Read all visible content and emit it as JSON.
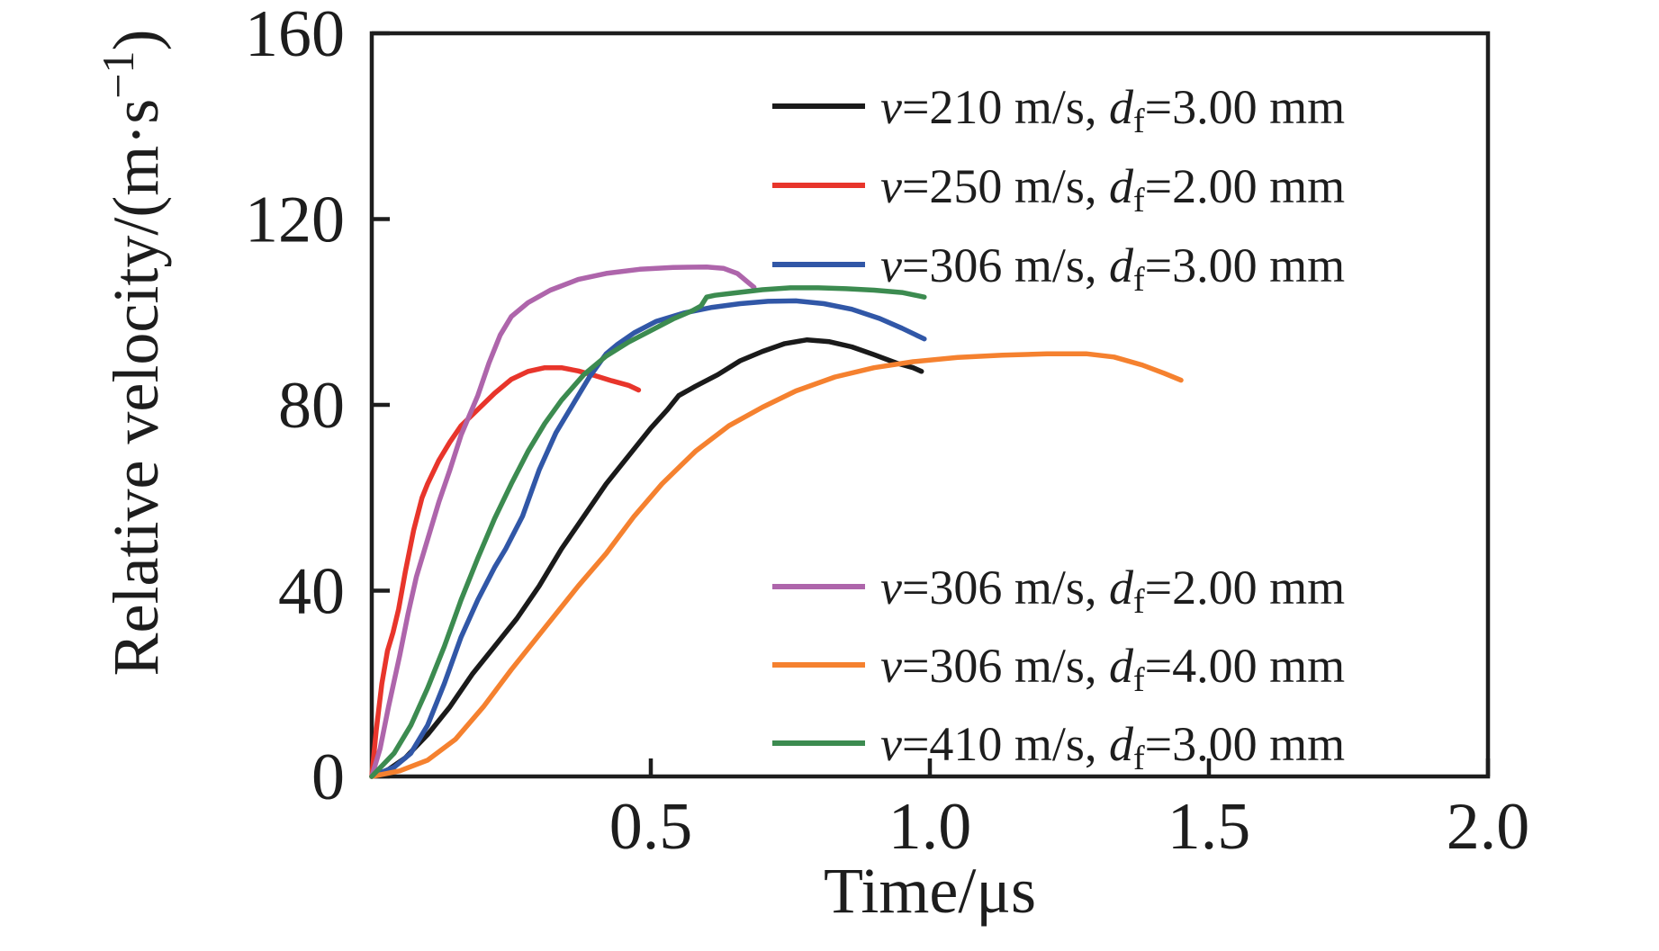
{
  "chart_data": {
    "type": "line",
    "title": "",
    "xlabel": "Time/μs",
    "xlabel_parts": [
      {
        "t": "Time/μs"
      }
    ],
    "ylabel": "Relative velocity/(m·s−1)",
    "ylabel_parts": [
      {
        "t": "Relative velocity/(m·s"
      },
      {
        "t": "−1",
        "style": "sup"
      },
      {
        "t": ")"
      }
    ],
    "xlim": [
      0,
      2.0
    ],
    "ylim": [
      0,
      160
    ],
    "x_ticks": [
      {
        "value": 0.5,
        "label": "0.5"
      },
      {
        "value": 1.0,
        "label": "1.0"
      },
      {
        "value": 1.5,
        "label": "1.5"
      },
      {
        "value": 2.0,
        "label": "2.0"
      }
    ],
    "y_ticks": [
      {
        "value": 0,
        "label": "0"
      },
      {
        "value": 40,
        "label": "40"
      },
      {
        "value": 80,
        "label": "80"
      },
      {
        "value": 120,
        "label": "120"
      },
      {
        "value": 160,
        "label": "160"
      }
    ],
    "grid": false,
    "frame": "full-box",
    "axis_color": "#1d1d1d",
    "background": "#ffffff",
    "legend_position": "two blocks inside plot: upper-right and lower-right",
    "series": [
      {
        "name": "v=210 m/s, df=3.00 mm",
        "label_parts": [
          {
            "t": "v",
            "style": "i"
          },
          {
            "t": "=210 m/s, "
          },
          {
            "t": "d",
            "style": "i"
          },
          {
            "t": "f",
            "style": "sub"
          },
          {
            "t": "=3.00 mm"
          }
        ],
        "color": "#1a1a1a",
        "legend_block": 0,
        "points": [
          [
            0,
            0
          ],
          [
            0.03,
            1.5
          ],
          [
            0.06,
            4
          ],
          [
            0.1,
            9
          ],
          [
            0.14,
            15
          ],
          [
            0.18,
            22
          ],
          [
            0.22,
            28
          ],
          [
            0.26,
            34
          ],
          [
            0.3,
            41
          ],
          [
            0.34,
            49
          ],
          [
            0.38,
            56
          ],
          [
            0.42,
            63
          ],
          [
            0.46,
            69
          ],
          [
            0.5,
            75
          ],
          [
            0.53,
            79
          ],
          [
            0.55,
            82
          ],
          [
            0.58,
            84
          ],
          [
            0.62,
            86.5
          ],
          [
            0.66,
            89.5
          ],
          [
            0.7,
            91.5
          ],
          [
            0.74,
            93.2
          ],
          [
            0.78,
            94
          ],
          [
            0.82,
            93.6
          ],
          [
            0.86,
            92.5
          ],
          [
            0.9,
            90.8
          ],
          [
            0.94,
            89
          ],
          [
            0.97,
            88
          ],
          [
            0.985,
            87.2
          ]
        ]
      },
      {
        "name": "v=250 m/s, df=2.00 mm",
        "label_parts": [
          {
            "t": "v",
            "style": "i"
          },
          {
            "t": "=250 m/s, "
          },
          {
            "t": "d",
            "style": "i"
          },
          {
            "t": "f",
            "style": "sub"
          },
          {
            "t": "=2.00 mm"
          }
        ],
        "color": "#e8352b",
        "legend_block": 0,
        "points": [
          [
            0,
            0
          ],
          [
            0.008,
            10
          ],
          [
            0.018,
            20
          ],
          [
            0.028,
            27
          ],
          [
            0.038,
            31
          ],
          [
            0.048,
            36
          ],
          [
            0.06,
            44
          ],
          [
            0.075,
            53
          ],
          [
            0.09,
            60
          ],
          [
            0.1,
            63
          ],
          [
            0.12,
            68
          ],
          [
            0.14,
            72
          ],
          [
            0.16,
            75.5
          ],
          [
            0.19,
            79
          ],
          [
            0.22,
            82.5
          ],
          [
            0.25,
            85.5
          ],
          [
            0.28,
            87.2
          ],
          [
            0.31,
            88
          ],
          [
            0.34,
            88
          ],
          [
            0.37,
            87.3
          ],
          [
            0.4,
            86.3
          ],
          [
            0.43,
            85.2
          ],
          [
            0.46,
            84.2
          ],
          [
            0.478,
            83.2
          ]
        ]
      },
      {
        "name": "v=306 m/s, df=3.00 mm",
        "label_parts": [
          {
            "t": "v",
            "style": "i"
          },
          {
            "t": "=306 m/s, "
          },
          {
            "t": "d",
            "style": "i"
          },
          {
            "t": "f",
            "style": "sub"
          },
          {
            "t": "=3.00 mm"
          }
        ],
        "color": "#3157a7",
        "legend_block": 0,
        "points": [
          [
            0,
            0
          ],
          [
            0.04,
            2
          ],
          [
            0.07,
            5
          ],
          [
            0.1,
            11
          ],
          [
            0.13,
            20
          ],
          [
            0.16,
            30
          ],
          [
            0.19,
            38
          ],
          [
            0.22,
            45
          ],
          [
            0.24,
            49
          ],
          [
            0.27,
            56
          ],
          [
            0.3,
            66
          ],
          [
            0.33,
            74
          ],
          [
            0.36,
            80
          ],
          [
            0.39,
            86
          ],
          [
            0.42,
            91
          ],
          [
            0.44,
            93
          ],
          [
            0.47,
            95.5
          ],
          [
            0.51,
            98
          ],
          [
            0.56,
            99.8
          ],
          [
            0.61,
            101
          ],
          [
            0.66,
            101.8
          ],
          [
            0.71,
            102.3
          ],
          [
            0.76,
            102.4
          ],
          [
            0.81,
            101.8
          ],
          [
            0.86,
            100.6
          ],
          [
            0.91,
            98.6
          ],
          [
            0.95,
            96.5
          ],
          [
            0.99,
            94.2
          ]
        ]
      },
      {
        "name": "v=306 m/s, df=2.00 mm",
        "label_parts": [
          {
            "t": "v",
            "style": "i"
          },
          {
            "t": "=306 m/s, "
          },
          {
            "t": "d",
            "style": "i"
          },
          {
            "t": "f",
            "style": "sub"
          },
          {
            "t": "=2.00 mm"
          }
        ],
        "color": "#ae65ab",
        "legend_block": 1,
        "points": [
          [
            0,
            0
          ],
          [
            0.015,
            6
          ],
          [
            0.03,
            15
          ],
          [
            0.05,
            26
          ],
          [
            0.065,
            35
          ],
          [
            0.08,
            43
          ],
          [
            0.1,
            51
          ],
          [
            0.12,
            59
          ],
          [
            0.14,
            66
          ],
          [
            0.16,
            73.5
          ],
          [
            0.19,
            82
          ],
          [
            0.21,
            89
          ],
          [
            0.23,
            95
          ],
          [
            0.25,
            99
          ],
          [
            0.28,
            102
          ],
          [
            0.32,
            104.7
          ],
          [
            0.37,
            107
          ],
          [
            0.42,
            108.3
          ],
          [
            0.48,
            109.2
          ],
          [
            0.54,
            109.6
          ],
          [
            0.6,
            109.7
          ],
          [
            0.63,
            109.4
          ],
          [
            0.655,
            108.3
          ],
          [
            0.675,
            106.3
          ],
          [
            0.685,
            105.3
          ]
        ]
      },
      {
        "name": "v=306 m/s, df=4.00 mm",
        "label_parts": [
          {
            "t": "v",
            "style": "i"
          },
          {
            "t": "=306 m/s, "
          },
          {
            "t": "d",
            "style": "i"
          },
          {
            "t": "f",
            "style": "sub"
          },
          {
            "t": "=4.00 mm"
          }
        ],
        "color": "#f5812f",
        "legend_block": 1,
        "points": [
          [
            0,
            0
          ],
          [
            0.05,
            1.2
          ],
          [
            0.1,
            3.5
          ],
          [
            0.15,
            8
          ],
          [
            0.2,
            15
          ],
          [
            0.25,
            23
          ],
          [
            0.31,
            32
          ],
          [
            0.37,
            41
          ],
          [
            0.42,
            48
          ],
          [
            0.47,
            56
          ],
          [
            0.52,
            63
          ],
          [
            0.58,
            70
          ],
          [
            0.64,
            75.5
          ],
          [
            0.7,
            79.5
          ],
          [
            0.76,
            83
          ],
          [
            0.83,
            86
          ],
          [
            0.9,
            88
          ],
          [
            0.97,
            89.3
          ],
          [
            1.05,
            90.2
          ],
          [
            1.13,
            90.7
          ],
          [
            1.21,
            91
          ],
          [
            1.28,
            91
          ],
          [
            1.33,
            90.3
          ],
          [
            1.38,
            88.6
          ],
          [
            1.42,
            86.8
          ],
          [
            1.45,
            85.3
          ]
        ]
      },
      {
        "name": "v=410 m/s, df=3.00 mm",
        "label_parts": [
          {
            "t": "v",
            "style": "i"
          },
          {
            "t": "=410 m/s, "
          },
          {
            "t": "d",
            "style": "i"
          },
          {
            "t": "f",
            "style": "sub"
          },
          {
            "t": "=3.00 mm"
          }
        ],
        "color": "#3c8b50",
        "legend_block": 1,
        "points": [
          [
            0,
            0
          ],
          [
            0.04,
            5
          ],
          [
            0.07,
            11
          ],
          [
            0.1,
            19
          ],
          [
            0.13,
            28
          ],
          [
            0.16,
            38
          ],
          [
            0.19,
            47
          ],
          [
            0.22,
            55.5
          ],
          [
            0.25,
            63
          ],
          [
            0.28,
            70
          ],
          [
            0.31,
            76
          ],
          [
            0.34,
            81
          ],
          [
            0.38,
            86.5
          ],
          [
            0.42,
            90.5
          ],
          [
            0.46,
            93.5
          ],
          [
            0.5,
            96
          ],
          [
            0.54,
            98.5
          ],
          [
            0.575,
            100.3
          ],
          [
            0.59,
            101.3
          ],
          [
            0.6,
            103.2
          ],
          [
            0.615,
            103.6
          ],
          [
            0.65,
            104.1
          ],
          [
            0.7,
            104.8
          ],
          [
            0.75,
            105.2
          ],
          [
            0.8,
            105.2
          ],
          [
            0.85,
            105
          ],
          [
            0.9,
            104.7
          ],
          [
            0.95,
            104.2
          ],
          [
            0.99,
            103.2
          ]
        ]
      }
    ]
  }
}
